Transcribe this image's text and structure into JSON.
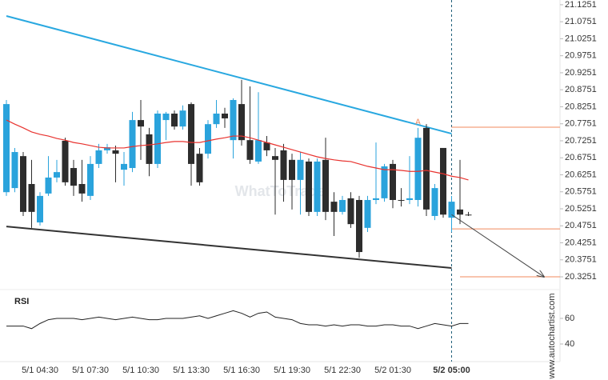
{
  "chart_data": {
    "type": "candlestick",
    "x": [
      "5/1 02:30",
      "5/1 03:00",
      "5/1 03:30",
      "5/1 04:00",
      "5/1 04:30",
      "5/1 05:00",
      "5/1 05:30",
      "5/1 06:00",
      "5/1 06:30",
      "5/1 07:00",
      "5/1 07:30",
      "5/1 08:00",
      "5/1 08:30",
      "5/1 09:00",
      "5/1 09:30",
      "5/1 10:00",
      "5/1 10:30",
      "5/1 11:00",
      "5/1 11:30",
      "5/1 12:00",
      "5/1 12:30",
      "5/1 13:00",
      "5/1 13:30",
      "5/1 14:00",
      "5/1 14:30",
      "5/1 15:00",
      "5/1 15:30",
      "5/1 16:00",
      "5/1 16:30",
      "5/1 17:00",
      "5/1 17:30",
      "5/1 18:00",
      "5/1 18:30",
      "5/1 19:00",
      "5/1 19:30",
      "5/1 20:00",
      "5/1 20:30",
      "5/1 21:00",
      "5/1 21:30",
      "5/1 22:00",
      "5/1 22:30",
      "5/1 23:00",
      "5/1 23:30",
      "5/2 00:00",
      "5/2 00:30",
      "5/2 01:00",
      "5/2 01:30",
      "5/2 02:00",
      "5/2 02:30",
      "5/2 03:00",
      "5/2 03:30",
      "5/2 04:00",
      "5/2 04:30",
      "5/2 05:00",
      "5/2 05:30",
      "5/2 06:00"
    ],
    "open": [
      20.574,
      20.586,
      20.68,
      20.598,
      20.485,
      20.57,
      20.617,
      20.725,
      20.645,
      20.598,
      20.563,
      20.657,
      20.697,
      20.697,
      20.64,
      20.645,
      20.786,
      20.744,
      20.657,
      20.786,
      20.805,
      20.767,
      20.833,
      20.687,
      20.687,
      20.774,
      20.805,
      20.727,
      20.833,
      20.727,
      20.664,
      20.72,
      20.68,
      20.697,
      20.669,
      20.61,
      20.664,
      20.516,
      20.669,
      20.546,
      20.516,
      20.556,
      20.551,
      20.469,
      20.551,
      20.556,
      20.657,
      20.551,
      20.551,
      20.551,
      20.763,
      20.504,
      20.704,
      20.499,
      20.523,
      20.508
    ],
    "high": [
      20.845,
      20.704,
      20.692,
      20.669,
      20.574,
      20.68,
      20.669,
      20.734,
      20.669,
      20.669,
      20.68,
      20.716,
      20.716,
      20.711,
      20.692,
      20.81,
      20.845,
      20.763,
      20.814,
      20.81,
      20.814,
      20.829,
      20.838,
      20.704,
      20.786,
      20.845,
      20.822,
      20.85,
      20.904,
      20.885,
      20.868,
      20.739,
      20.704,
      20.716,
      20.687,
      20.692,
      20.673,
      20.673,
      20.734,
      20.574,
      20.563,
      20.574,
      20.563,
      20.563,
      20.72,
      20.657,
      20.669,
      20.586,
      20.68,
      20.763,
      20.774,
      20.598,
      20.704,
      20.563,
      20.669,
      20.516
    ],
    "low": [
      20.563,
      20.574,
      20.504,
      20.469,
      20.476,
      20.563,
      20.603,
      20.593,
      20.563,
      20.546,
      20.551,
      20.645,
      20.687,
      20.603,
      20.593,
      20.633,
      20.669,
      20.621,
      20.645,
      20.727,
      20.758,
      20.758,
      20.593,
      20.593,
      20.673,
      20.763,
      20.763,
      20.673,
      20.711,
      20.657,
      20.657,
      20.68,
      20.508,
      20.546,
      20.523,
      20.508,
      20.504,
      20.504,
      20.492,
      20.445,
      20.508,
      20.469,
      20.381,
      20.457,
      20.539,
      20.546,
      20.527,
      20.532,
      20.539,
      20.532,
      20.504,
      20.492,
      20.499,
      20.457,
      20.48,
      20.504
    ],
    "close": [
      20.833,
      20.692,
      20.516,
      20.516,
      20.563,
      20.617,
      20.633,
      20.603,
      20.593,
      20.57,
      20.657,
      20.697,
      20.706,
      20.687,
      20.657,
      20.786,
      20.767,
      20.657,
      20.805,
      20.805,
      20.767,
      20.814,
      20.657,
      20.603,
      20.774,
      20.805,
      20.791,
      20.845,
      20.727,
      20.669,
      20.727,
      20.697,
      20.669,
      20.61,
      20.61,
      20.669,
      20.516,
      20.664,
      20.516,
      20.516,
      20.551,
      20.48,
      20.398,
      20.551,
      20.556,
      20.65,
      20.551,
      20.549,
      20.556,
      20.734,
      20.523,
      20.586,
      20.508,
      20.546,
      20.508,
      20.506
    ],
    "up_color": "#2aa3dc",
    "down_color": "#2d2d2d",
    "ylim": [
      20.304,
      21.139
    ],
    "yticks": [
      21.1251,
      21.0751,
      21.0251,
      20.9751,
      20.9251,
      20.8751,
      20.8251,
      20.7751,
      20.7251,
      20.6751,
      20.6251,
      20.5751,
      20.5251,
      20.4751,
      20.4251,
      20.3751,
      20.3251
    ],
    "xticks": [
      "5/1 04:30",
      "5/1 07:30",
      "5/1 10:30",
      "5/1 13:30",
      "5/1 16:30",
      "5/1 19:30",
      "5/1 22:30",
      "5/2 01:30",
      "5/2 05:00"
    ],
    "moving_average": {
      "color": "#e8332f",
      "values": [
        20.786,
        20.774,
        20.763,
        20.751,
        20.744,
        20.739,
        20.732,
        20.727,
        20.72,
        20.716,
        20.711,
        20.706,
        20.704,
        20.704,
        20.704,
        20.708,
        20.711,
        20.713,
        20.716,
        20.72,
        20.723,
        20.723,
        20.72,
        20.72,
        20.725,
        20.73,
        20.734,
        20.739,
        20.739,
        20.734,
        20.727,
        20.72,
        20.713,
        20.706,
        20.699,
        20.692,
        20.685,
        20.678,
        20.673,
        20.669,
        20.666,
        20.664,
        20.657,
        20.65,
        20.645,
        20.64,
        20.64,
        20.638,
        20.635,
        20.635,
        20.638,
        20.633,
        20.628,
        20.621,
        20.617,
        20.61
      ]
    },
    "trend_lines": [
      {
        "color": "#29a8e0",
        "x": [
          "5/1 02:30",
          "5/2 05:00"
        ],
        "values": [
          21.092,
          20.746
        ]
      },
      {
        "color": "#333333",
        "x": [
          "5/1 02:30",
          "5/2 05:00"
        ],
        "values": [
          20.473,
          20.351
        ]
      }
    ],
    "levels": [
      {
        "color": "#f08a5d",
        "x": "5/2 05:00",
        "value": 20.765
      },
      {
        "color": "#f08a5d",
        "x": "5/2 05:00",
        "value": 20.466
      },
      {
        "color": "#f08a5d",
        "x": "5/2 05:30",
        "value": 20.3251
      }
    ],
    "forecast": {
      "x": "5/2 05:00",
      "from": 20.508,
      "to": 20.3251
    },
    "marker": {
      "label": "A",
      "x": "5/2 03:00",
      "value": 20.779
    },
    "rsi": {
      "title": "RSI",
      "ylim": [
        27.5,
        80.6
      ],
      "yticks": [
        40,
        60
      ],
      "values": [
        54,
        54,
        54,
        52,
        56,
        59,
        60,
        60,
        60,
        59,
        60,
        61,
        60,
        59,
        60,
        61,
        60,
        59,
        59,
        60,
        60,
        60,
        61,
        62,
        60,
        62,
        64,
        66,
        64,
        61,
        64,
        65,
        61,
        60,
        59,
        56,
        55,
        55,
        54,
        55,
        54,
        55,
        55,
        54,
        54,
        55,
        55,
        54,
        54,
        52,
        54,
        56,
        55,
        54,
        56,
        56
      ]
    },
    "watermark": "WhatToTrade",
    "source": "www.autochartist.com"
  }
}
